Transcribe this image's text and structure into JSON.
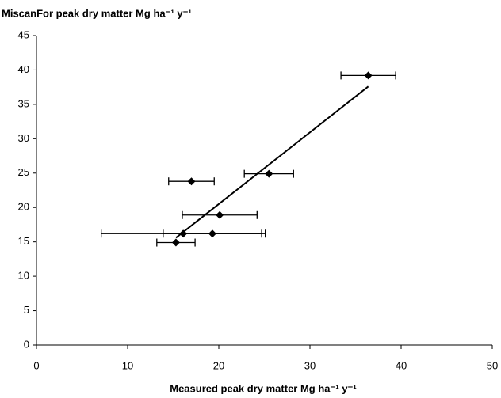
{
  "chart_data": {
    "type": "scatter",
    "title": "MiscanFor peak dry matter Mg ha⁻¹ y⁻¹",
    "x_label": "Measured peak dry matter  Mg ha⁻¹ y⁻¹",
    "series": [
      {
        "color": "#000000",
        "x": [
          36.4,
          25.5,
          17.0,
          20.1,
          16.1,
          19.3,
          15.3
        ],
        "values": [
          39.2,
          24.9,
          23.8,
          18.9,
          16.2,
          16.2,
          14.9
        ],
        "xerr": [
          3.0,
          2.7,
          2.5,
          4.1,
          9.0,
          5.4,
          2.1
        ]
      }
    ],
    "trend": {
      "x": [
        15.3,
        36.4
      ],
      "values": [
        15.6,
        37.6
      ],
      "color": "#000000"
    },
    "xlim": [
      0,
      50
    ],
    "xticks": [
      0,
      10,
      20,
      30,
      40,
      50
    ],
    "ylim": [
      0,
      45
    ],
    "yticks": [
      0,
      5,
      10,
      15,
      20,
      25,
      30,
      35,
      40,
      45
    ],
    "grid": false
  }
}
